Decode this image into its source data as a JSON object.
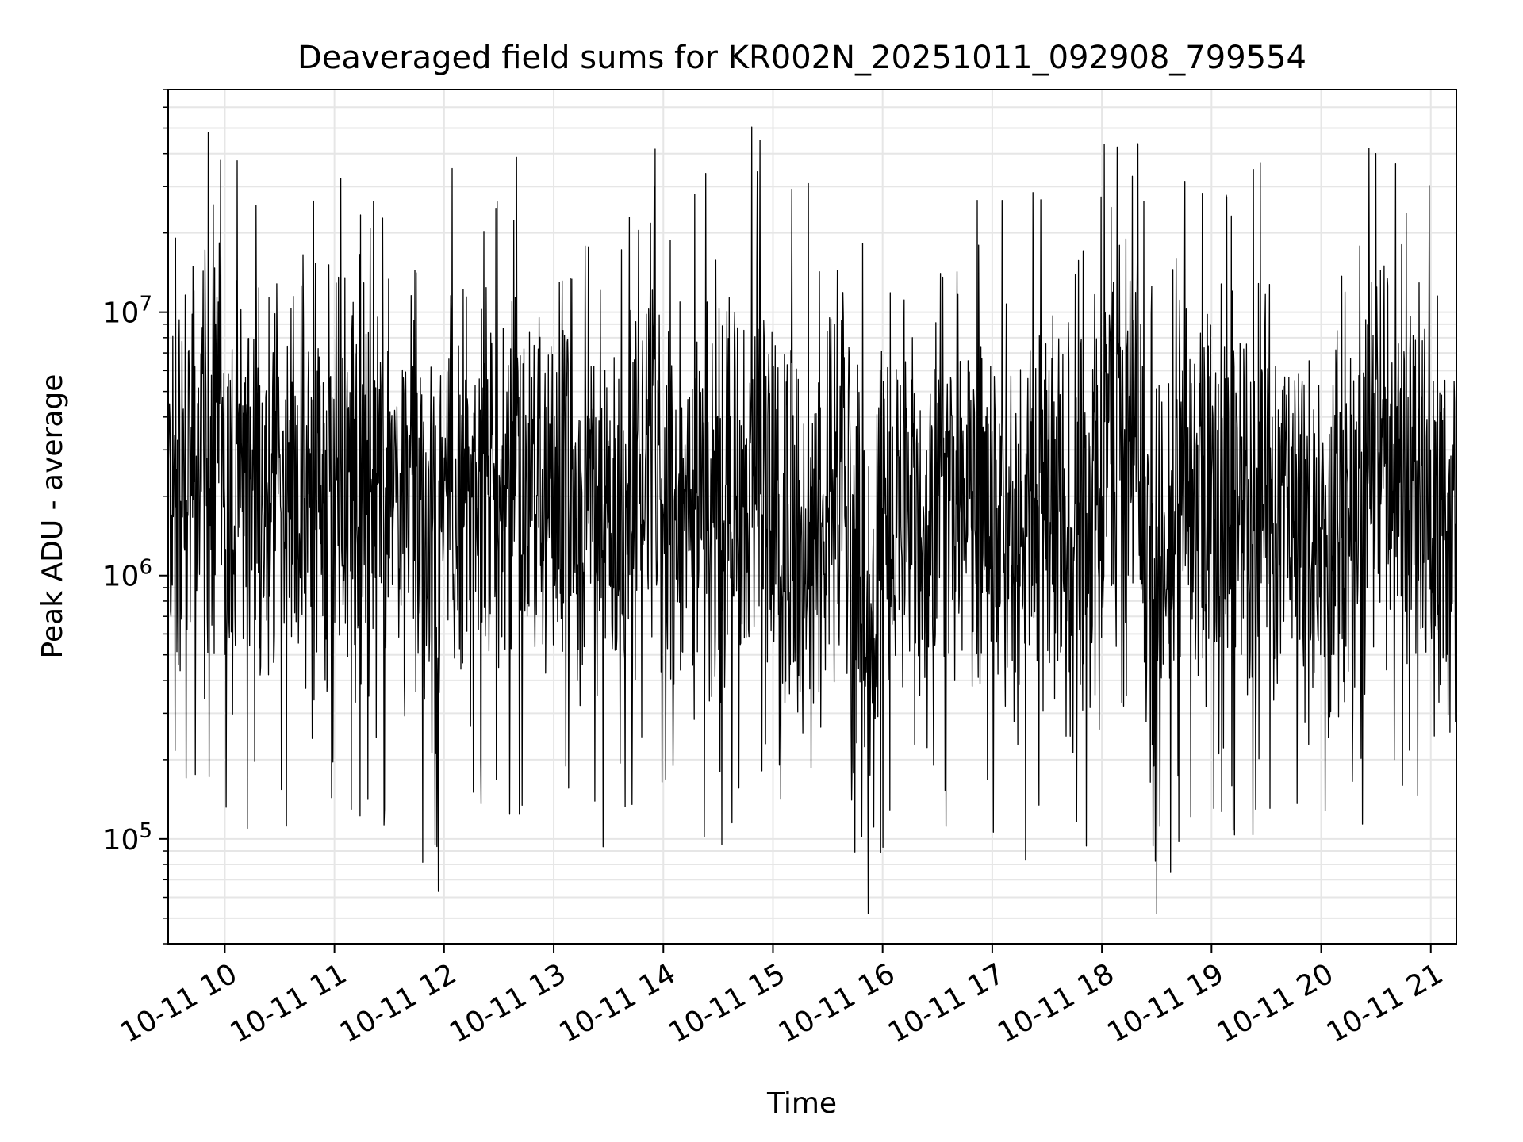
{
  "chart_data": {
    "type": "line",
    "title": "Deaveraged field sums for KR002N_20251011_092908_799554",
    "xlabel": "Time",
    "ylabel": "Peak ADU - average",
    "y_scale": "log",
    "ylim": [
      40000,
      70000000
    ],
    "xlim": [
      "2025-10-11 09:29",
      "2025-10-11 21:14"
    ],
    "x_ticks": [
      {
        "time": "2025-10-11 10:00",
        "label": "10-11 10"
      },
      {
        "time": "2025-10-11 11:00",
        "label": "10-11 11"
      },
      {
        "time": "2025-10-11 12:00",
        "label": "10-11 12"
      },
      {
        "time": "2025-10-11 13:00",
        "label": "10-11 13"
      },
      {
        "time": "2025-10-11 14:00",
        "label": "10-11 14"
      },
      {
        "time": "2025-10-11 15:00",
        "label": "10-11 15"
      },
      {
        "time": "2025-10-11 16:00",
        "label": "10-11 16"
      },
      {
        "time": "2025-10-11 17:00",
        "label": "10-11 17"
      },
      {
        "time": "2025-10-11 18:00",
        "label": "10-11 18"
      },
      {
        "time": "2025-10-11 19:00",
        "label": "10-11 19"
      },
      {
        "time": "2025-10-11 20:00",
        "label": "10-11 20"
      },
      {
        "time": "2025-10-11 21:00",
        "label": "10-11 21"
      }
    ],
    "y_ticks": [
      {
        "value": 100000,
        "base": "10",
        "exp": "5"
      },
      {
        "value": 1000000,
        "base": "10",
        "exp": "6"
      },
      {
        "value": 10000000,
        "base": "10",
        "exp": "7"
      }
    ],
    "grid": true,
    "line_color": "#000000",
    "grid_color": "#e6e6e6",
    "series": [
      {
        "times": [
          "2025-10-11 09:29",
          "2025-10-11 09:45",
          "2025-10-11 09:51",
          "2025-10-11 10:00",
          "2025-10-11 10:15",
          "2025-10-11 10:25",
          "2025-10-11 10:30",
          "2025-10-11 10:45",
          "2025-10-11 11:00",
          "2025-10-11 11:15",
          "2025-10-11 11:30",
          "2025-10-11 11:45",
          "2025-10-11 11:55",
          "2025-10-11 12:00",
          "2025-10-11 12:15",
          "2025-10-11 12:30",
          "2025-10-11 12:45",
          "2025-10-11 13:00",
          "2025-10-11 13:15",
          "2025-10-11 13:30",
          "2025-10-11 13:40",
          "2025-10-11 13:55",
          "2025-10-11 14:00",
          "2025-10-11 14:15",
          "2025-10-11 14:30",
          "2025-10-11 14:45",
          "2025-10-11 14:53",
          "2025-10-11 15:00",
          "2025-10-11 15:15",
          "2025-10-11 15:30",
          "2025-10-11 15:45",
          "2025-10-11 15:52",
          "2025-10-11 16:00",
          "2025-10-11 16:15",
          "2025-10-11 16:30",
          "2025-10-11 16:45",
          "2025-10-11 17:00",
          "2025-10-11 17:15",
          "2025-10-11 17:30",
          "2025-10-11 17:45",
          "2025-10-11 18:00",
          "2025-10-11 18:05",
          "2025-10-11 18:20",
          "2025-10-11 18:30",
          "2025-10-11 18:45",
          "2025-10-11 19:00",
          "2025-10-11 19:15",
          "2025-10-11 19:30",
          "2025-10-11 19:45",
          "2025-10-11 20:00",
          "2025-10-11 20:15",
          "2025-10-11 20:25",
          "2025-10-11 20:30",
          "2025-10-11 20:45",
          "2025-10-11 21:00",
          "2025-10-11 21:14"
        ],
        "values": [
          2500000,
          4500000,
          48000000,
          1800000,
          3000000,
          1200000,
          2800000,
          2200000,
          2600000,
          3200000,
          2200000,
          2600000,
          95000,
          2800000,
          2000000,
          2400000,
          3000000,
          2100000,
          2500000,
          1600000,
          1200000,
          30000000,
          1700000,
          1500000,
          2000000,
          1600000,
          45000000,
          1400000,
          1300000,
          1600000,
          1500000,
          52000,
          1800000,
          2400000,
          2200000,
          1700000,
          1300000,
          1200000,
          1500000,
          1300000,
          2000000,
          25000000,
          3000000,
          52000,
          2600000,
          2400000,
          2000000,
          2200000,
          1600000,
          1000000,
          1800000,
          2200000,
          40000000,
          2600000,
          3000000,
          700000
        ]
      }
    ]
  }
}
